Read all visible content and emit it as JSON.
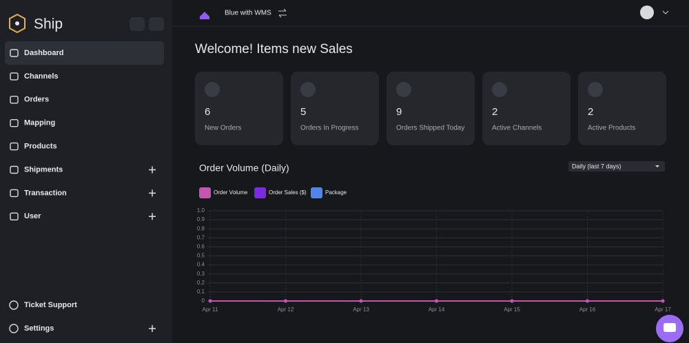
{
  "sidebar": {
    "brand": "Ship",
    "items": [
      {
        "label": "Dashboard",
        "active": true,
        "expandable": false
      },
      {
        "label": "Channels",
        "active": false,
        "expandable": false
      },
      {
        "label": "Orders",
        "active": false,
        "expandable": false
      },
      {
        "label": "Mapping",
        "active": false,
        "expandable": false
      },
      {
        "label": "Products",
        "active": false,
        "expandable": false
      },
      {
        "label": "Shipments",
        "active": false,
        "expandable": true
      },
      {
        "label": "Transaction",
        "active": false,
        "expandable": true
      },
      {
        "label": "User",
        "active": false,
        "expandable": true
      }
    ],
    "bottom_items": [
      {
        "label": "Ticket Support",
        "expandable": false
      },
      {
        "label": "Settings",
        "expandable": true
      }
    ]
  },
  "topbar": {
    "workspace": "Blue with WMS"
  },
  "main": {
    "welcome": "Welcome!  Items new Sales",
    "cards": [
      {
        "value": "6",
        "label": "New Orders"
      },
      {
        "value": "5",
        "label": "Orders In Progress"
      },
      {
        "value": "9",
        "label": "Orders Shipped Today"
      },
      {
        "value": "2",
        "label": "Active Channels"
      },
      {
        "value": "2",
        "label": "Active Products"
      }
    ],
    "period_select": "Daily (last 7 days)"
  },
  "chart_data": {
    "type": "line",
    "title": "Order Volume (Daily)",
    "categories": [
      "Apr 11",
      "Apr 12",
      "Apr 13",
      "Apr 14",
      "Apr 15",
      "Apr 16",
      "Apr 17"
    ],
    "series": [
      {
        "name": "Order Volume",
        "color": "#c455b0",
        "values": [
          0,
          0,
          0,
          0,
          0,
          0,
          0
        ]
      },
      {
        "name": "Order Sales ($)",
        "color": "#7a2de0",
        "values": [
          0,
          0,
          0,
          0,
          0,
          0,
          0
        ]
      },
      {
        "name": "Package",
        "color": "#4f86e8",
        "values": [
          0,
          0,
          0,
          0,
          0,
          0,
          0
        ]
      }
    ],
    "ylim": [
      0,
      1
    ],
    "yticks": [
      0,
      0.1,
      0.2,
      0.3,
      0.4,
      0.5,
      0.6,
      0.7,
      0.8,
      0.9,
      {
        "value": 1,
        "label": "1.0"
      }
    ],
    "grid": true
  }
}
